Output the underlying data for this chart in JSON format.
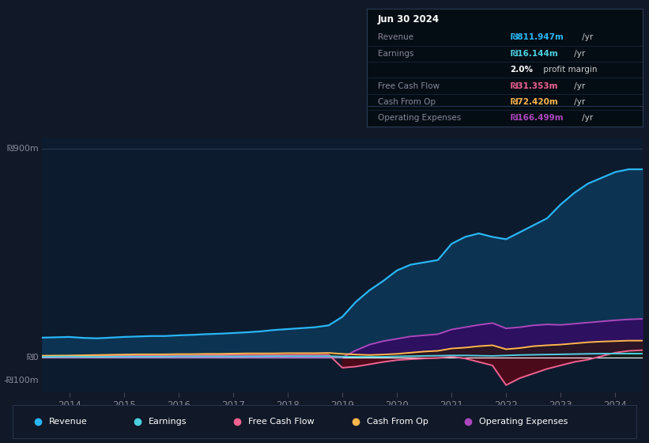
{
  "background_color": "#111827",
  "plot_bg_color": "#0d1b2e",
  "years": [
    2013.5,
    2014.0,
    2014.25,
    2014.5,
    2014.75,
    2015.0,
    2015.25,
    2015.5,
    2015.75,
    2016.0,
    2016.25,
    2016.5,
    2016.75,
    2017.0,
    2017.25,
    2017.5,
    2017.75,
    2018.0,
    2018.25,
    2018.5,
    2018.75,
    2019.0,
    2019.25,
    2019.5,
    2019.75,
    2020.0,
    2020.25,
    2020.5,
    2020.75,
    2021.0,
    2021.25,
    2021.5,
    2021.75,
    2022.0,
    2022.25,
    2022.5,
    2022.75,
    2023.0,
    2023.25,
    2023.5,
    2023.75,
    2024.0,
    2024.25,
    2024.5
  ],
  "revenue": [
    85,
    88,
    84,
    82,
    85,
    88,
    90,
    92,
    92,
    95,
    97,
    100,
    102,
    105,
    108,
    112,
    118,
    122,
    126,
    130,
    138,
    175,
    240,
    290,
    330,
    375,
    400,
    410,
    420,
    490,
    520,
    535,
    520,
    510,
    540,
    570,
    600,
    660,
    710,
    750,
    775,
    800,
    812,
    812
  ],
  "earnings": [
    2,
    3,
    2.5,
    2,
    2.5,
    3,
    3,
    3,
    3,
    4,
    4,
    4,
    4,
    4,
    4,
    4.5,
    5,
    5,
    5,
    5,
    5,
    3,
    2,
    2,
    2,
    4,
    5,
    6,
    7,
    8,
    8,
    7,
    6,
    8,
    10,
    11,
    12,
    13,
    14,
    15,
    16,
    16,
    16,
    16
  ],
  "free_cash_flow": [
    4,
    5,
    5,
    6,
    6,
    7,
    7,
    7,
    8,
    8,
    8,
    9,
    9,
    10,
    10,
    10,
    10,
    10,
    11,
    11,
    11,
    -45,
    -40,
    -30,
    -20,
    -12,
    -8,
    -5,
    -3,
    3,
    -5,
    -20,
    -35,
    -120,
    -90,
    -70,
    -50,
    -35,
    -20,
    -10,
    5,
    20,
    28,
    31
  ],
  "cash_from_op": [
    7,
    8,
    9,
    10,
    11,
    12,
    13,
    13,
    13,
    14,
    14,
    15,
    15,
    16,
    17,
    17,
    17,
    18,
    18,
    18,
    19,
    15,
    12,
    10,
    12,
    15,
    20,
    25,
    28,
    38,
    42,
    48,
    52,
    35,
    40,
    48,
    52,
    55,
    60,
    65,
    68,
    70,
    72,
    72
  ],
  "operating_expenses": [
    0,
    0,
    0,
    0,
    0,
    0,
    0,
    0,
    0,
    0,
    0,
    0,
    0,
    0,
    0,
    0,
    0,
    0,
    0,
    0,
    0,
    0,
    30,
    55,
    70,
    80,
    90,
    95,
    100,
    120,
    130,
    140,
    148,
    125,
    130,
    138,
    142,
    140,
    145,
    150,
    155,
    160,
    164,
    166
  ],
  "revenue_color": "#29b6f6",
  "earnings_color": "#4dd0e1",
  "free_cash_flow_color": "#f06292",
  "cash_from_op_color": "#ffb74d",
  "operating_expenses_color": "#ab47bc",
  "revenue_fill": "#0d3352",
  "opex_fill": "#2d1060",
  "fcf_neg_fill": "#4a0a1a",
  "fcf_pos_fill": "#0a2a18",
  "cfo_fill": "#2a1a00",
  "ylim": [
    -150,
    950
  ],
  "ytick_labels_left": [
    "₪900m",
    "₪0",
    "-₪100m"
  ],
  "ytick_vals": [
    900,
    0,
    -100
  ],
  "xtick_years": [
    2014,
    2015,
    2016,
    2017,
    2018,
    2019,
    2020,
    2021,
    2022,
    2023,
    2024
  ],
  "info_box": {
    "title": "Jun 30 2024",
    "rows": [
      {
        "label": "Revenue",
        "value": "₪811.947m",
        "suffix": " /yr",
        "color": "#29b6f6"
      },
      {
        "label": "Earnings",
        "value": "₪16.144m",
        "suffix": " /yr",
        "color": "#4dd0e1"
      },
      {
        "label": "",
        "value": "2.0%",
        "suffix": " profit margin",
        "color": "#ffffff",
        "suffix_color": "#cccccc"
      },
      {
        "label": "Free Cash Flow",
        "value": "₪31.353m",
        "suffix": " /yr",
        "color": "#f06292"
      },
      {
        "label": "Cash From Op",
        "value": "₪72.420m",
        "suffix": " /yr",
        "color": "#ffb74d"
      },
      {
        "label": "Operating Expenses",
        "value": "₪166.499m",
        "suffix": " /yr",
        "color": "#ab47bc"
      }
    ]
  },
  "legend_items": [
    {
      "label": "Revenue",
      "color": "#29b6f6"
    },
    {
      "label": "Earnings",
      "color": "#4dd0e1"
    },
    {
      "label": "Free Cash Flow",
      "color": "#f06292"
    },
    {
      "label": "Cash From Op",
      "color": "#ffb74d"
    },
    {
      "label": "Operating Expenses",
      "color": "#ab47bc"
    }
  ]
}
